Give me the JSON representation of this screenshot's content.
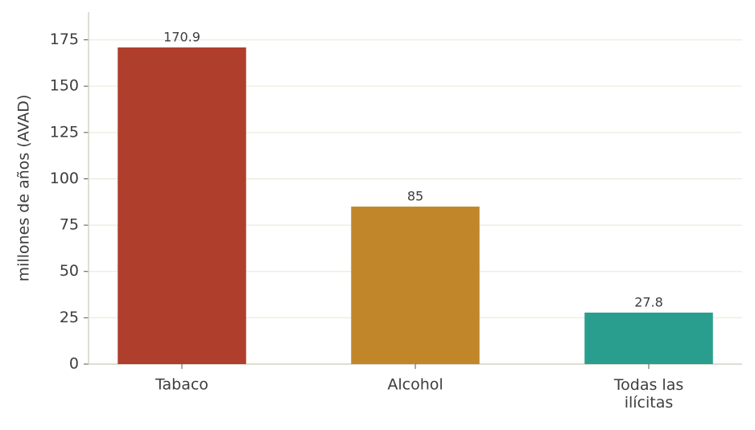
{
  "chart_data": {
    "type": "bar",
    "ylabel": "millones de años (AVAD)",
    "categories": [
      "Tabaco",
      "Alcohol",
      "Todas las\nilícitas"
    ],
    "values": [
      170.9,
      85,
      27.8
    ],
    "colors": [
      "#b03e2c",
      "#c1862a",
      "#2a9e8e"
    ],
    "ylim": [
      0,
      190
    ],
    "yticks": [
      0,
      25,
      50,
      75,
      100,
      125,
      150,
      175
    ],
    "grid": true
  }
}
